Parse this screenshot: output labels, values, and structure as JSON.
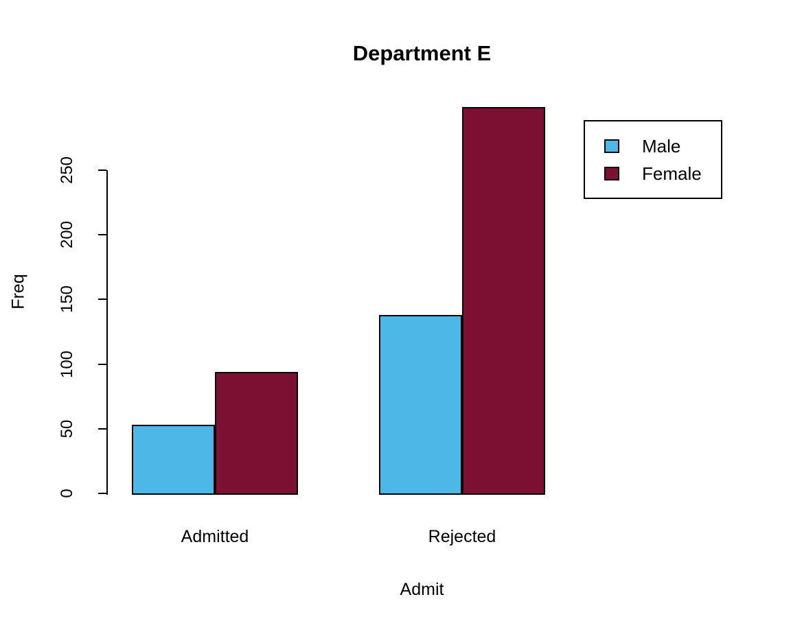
{
  "chart_data": {
    "type": "bar",
    "title": "Department E",
    "xlabel": "Admit",
    "ylabel": "Freq",
    "categories": [
      "Admitted",
      "Rejected"
    ],
    "series": [
      {
        "name": "Male",
        "color": "#4DB8E8",
        "values": [
          53,
          138
        ]
      },
      {
        "name": "Female",
        "color": "#7D1134",
        "values": [
          94,
          299
        ]
      }
    ],
    "ylim": [
      0,
      250
    ],
    "yticks": [
      0,
      50,
      100,
      150,
      200,
      250
    ],
    "grid": false,
    "legend_position": "top-right",
    "grouped": true,
    "bar_border_color": "#000000",
    "background_color": "#ffffff"
  }
}
